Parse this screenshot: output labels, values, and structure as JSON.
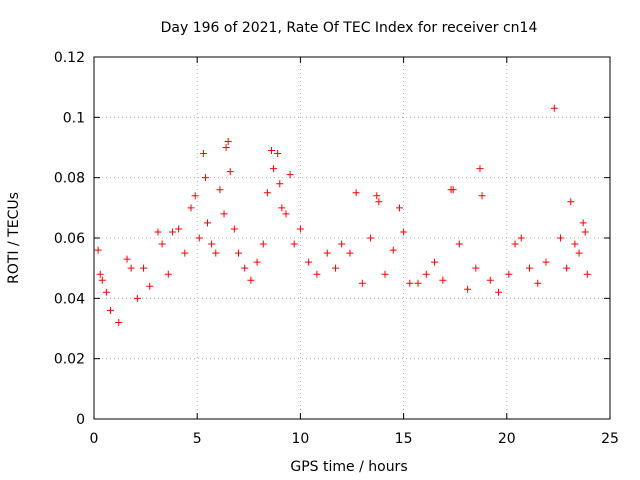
{
  "chart_data": {
    "type": "scatter",
    "title": "Day 196 of 2021, Rate Of TEC Index for receiver cn14",
    "xlabel": "GPS time / hours",
    "ylabel": "ROTI / TECUs",
    "xlim": [
      0,
      25
    ],
    "ylim": [
      0,
      0.12
    ],
    "x_ticks": [
      0,
      5,
      10,
      15,
      20,
      25
    ],
    "y_ticks": [
      0,
      0.02,
      0.04,
      0.06,
      0.08,
      0.1,
      0.12
    ],
    "x_tick_labels": [
      "0",
      "5",
      "10",
      "15",
      "20",
      "25"
    ],
    "y_tick_labels": [
      "0",
      "0.02",
      "0.04",
      "0.06",
      "0.08",
      "0.1",
      "0.12"
    ],
    "grid": true,
    "marker": "+",
    "color": "#ff0000",
    "series": [
      {
        "name": "ROTI",
        "points": [
          [
            0.2,
            0.056
          ],
          [
            0.3,
            0.048
          ],
          [
            0.4,
            0.046
          ],
          [
            0.6,
            0.042
          ],
          [
            0.8,
            0.036
          ],
          [
            1.2,
            0.032
          ],
          [
            1.6,
            0.053
          ],
          [
            1.8,
            0.05
          ],
          [
            2.1,
            0.04
          ],
          [
            2.4,
            0.05
          ],
          [
            2.7,
            0.044
          ],
          [
            3.1,
            0.062
          ],
          [
            3.3,
            0.058
          ],
          [
            3.6,
            0.048
          ],
          [
            3.8,
            0.062
          ],
          [
            4.1,
            0.063
          ],
          [
            4.4,
            0.055
          ],
          [
            4.7,
            0.07
          ],
          [
            4.9,
            0.074
          ],
          [
            5.1,
            0.06
          ],
          [
            5.3,
            0.088
          ],
          [
            5.4,
            0.08
          ],
          [
            5.5,
            0.065
          ],
          [
            5.7,
            0.058
          ],
          [
            5.9,
            0.055
          ],
          [
            6.1,
            0.076
          ],
          [
            6.3,
            0.068
          ],
          [
            6.4,
            0.09
          ],
          [
            6.5,
            0.092
          ],
          [
            6.6,
            0.082
          ],
          [
            6.8,
            0.063
          ],
          [
            7.0,
            0.055
          ],
          [
            7.3,
            0.05
          ],
          [
            7.6,
            0.046
          ],
          [
            7.9,
            0.052
          ],
          [
            8.2,
            0.058
          ],
          [
            8.4,
            0.075
          ],
          [
            8.6,
            0.089
          ],
          [
            8.7,
            0.083
          ],
          [
            8.9,
            0.088
          ],
          [
            9.0,
            0.078
          ],
          [
            9.1,
            0.07
          ],
          [
            9.3,
            0.068
          ],
          [
            9.5,
            0.081
          ],
          [
            9.7,
            0.058
          ],
          [
            10.0,
            0.063
          ],
          [
            10.4,
            0.052
          ],
          [
            10.8,
            0.048
          ],
          [
            11.3,
            0.055
          ],
          [
            11.7,
            0.05
          ],
          [
            12.0,
            0.058
          ],
          [
            12.4,
            0.055
          ],
          [
            12.7,
            0.075
          ],
          [
            13.0,
            0.045
          ],
          [
            13.4,
            0.06
          ],
          [
            13.7,
            0.074
          ],
          [
            13.8,
            0.072
          ],
          [
            14.1,
            0.048
          ],
          [
            14.5,
            0.056
          ],
          [
            14.8,
            0.07
          ],
          [
            15.0,
            0.062
          ],
          [
            15.3,
            0.045
          ],
          [
            15.7,
            0.045
          ],
          [
            16.1,
            0.048
          ],
          [
            16.5,
            0.052
          ],
          [
            16.9,
            0.046
          ],
          [
            17.3,
            0.076
          ],
          [
            17.4,
            0.076
          ],
          [
            17.7,
            0.058
          ],
          [
            18.1,
            0.043
          ],
          [
            18.5,
            0.05
          ],
          [
            18.7,
            0.083
          ],
          [
            18.8,
            0.074
          ],
          [
            19.2,
            0.046
          ],
          [
            19.6,
            0.042
          ],
          [
            20.1,
            0.048
          ],
          [
            20.4,
            0.058
          ],
          [
            20.7,
            0.06
          ],
          [
            21.1,
            0.05
          ],
          [
            21.5,
            0.045
          ],
          [
            21.9,
            0.052
          ],
          [
            22.3,
            0.103
          ],
          [
            22.6,
            0.06
          ],
          [
            22.9,
            0.05
          ],
          [
            23.1,
            0.072
          ],
          [
            23.3,
            0.058
          ],
          [
            23.5,
            0.055
          ],
          [
            23.7,
            0.065
          ],
          [
            23.8,
            0.062
          ],
          [
            23.9,
            0.048
          ]
        ]
      }
    ]
  }
}
